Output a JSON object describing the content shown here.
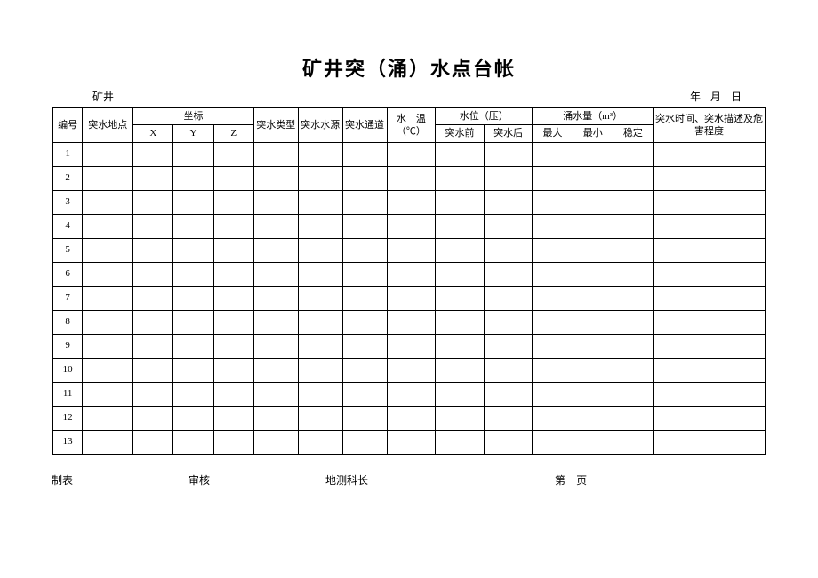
{
  "title": "矿井突（涌）水点台帐",
  "header": {
    "left": "矿井",
    "right": "年 月 日"
  },
  "columns": {
    "num": "编号",
    "location": "突水地点",
    "coord": "坐标",
    "x": "X",
    "y": "Y",
    "z": "Z",
    "type": "突水类型",
    "source": "突水水源",
    "channel": "突水通道",
    "temp": "水　温（℃）",
    "waterlevel": "水位（压）",
    "wl_before": "突水前",
    "wl_after": "突水后",
    "flow": "涌水量（m³）",
    "flow_max": "最大",
    "flow_min": "最小",
    "flow_stable": "稳定",
    "desc": "突水时间、突水描述及危害程度"
  },
  "rows": [
    "1",
    "2",
    "3",
    "4",
    "5",
    "6",
    "7",
    "8",
    "9",
    "10",
    "11",
    "12",
    "13"
  ],
  "footer": {
    "maker": "制表",
    "reviewer": "审核",
    "chief": "地测科长",
    "page_prefix": "第",
    "page_suffix": "页"
  },
  "style": {
    "background": "#ffffff",
    "border_color": "#000000",
    "title_fontsize": 22,
    "body_fontsize": 11,
    "meta_fontsize": 12
  }
}
